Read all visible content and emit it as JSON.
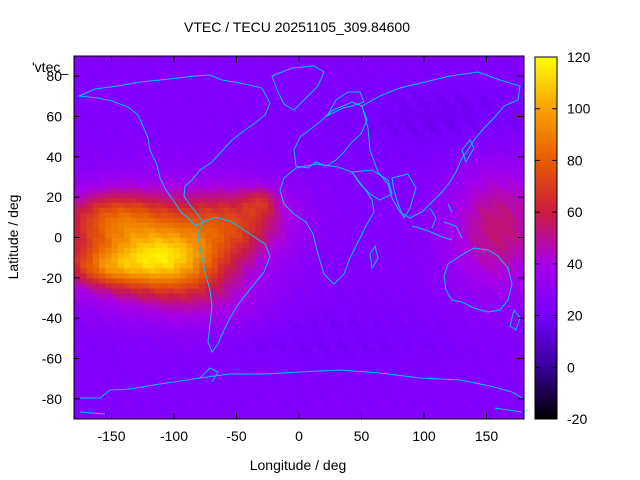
{
  "chart_data": {
    "type": "heatmap",
    "title": "VTEC / TECU 20251105_309.84600",
    "xlabel": "Longitude / deg",
    "ylabel": "Latitude / deg",
    "xlim": [
      -180,
      180
    ],
    "ylim": [
      -90,
      90
    ],
    "x_ticks": [
      -150,
      -100,
      -50,
      0,
      50,
      100,
      150
    ],
    "y_ticks": [
      -80,
      -60,
      -40,
      -20,
      0,
      20,
      40,
      60,
      80
    ],
    "x_tick_labels": [
      "-150",
      "-100",
      "-50",
      "0",
      "50",
      "100",
      "150"
    ],
    "y_tick_labels": [
      "-80",
      "-60",
      "-40",
      "-20",
      "0",
      "20",
      "40",
      "60",
      "80"
    ],
    "colorbar": {
      "range": [
        -20,
        120
      ],
      "ticks": [
        -20,
        0,
        20,
        40,
        60,
        80,
        100,
        120
      ],
      "tick_labels": [
        "-20",
        "0",
        "20",
        "40",
        "60",
        "80",
        "100",
        "120"
      ],
      "palette": "gnuplot pm3d (black-purple-red-orange-yellow)"
    },
    "legend_label": "'vtec_",
    "background_value": 24,
    "features": [
      {
        "lon": -125,
        "lat": -3,
        "sigma_lon": 48,
        "sigma_lat": 17,
        "amp": 58
      },
      {
        "lon": -105,
        "lat": -12,
        "sigma_lon": 28,
        "sigma_lat": 10,
        "amp": 38
      },
      {
        "lon": -155,
        "lat": -15,
        "sigma_lon": 20,
        "sigma_lat": 6,
        "amp": 25
      },
      {
        "lon": -150,
        "lat": 12,
        "sigma_lon": 25,
        "sigma_lat": 8,
        "amp": 22
      },
      {
        "lon": -50,
        "lat": 8,
        "sigma_lon": 30,
        "sigma_lat": 12,
        "amp": 34
      },
      {
        "lon": -30,
        "lat": 18,
        "sigma_lon": 10,
        "sigma_lat": 5,
        "amp": 20
      },
      {
        "lon": -75,
        "lat": -30,
        "sigma_lon": 35,
        "sigma_lat": 12,
        "amp": 15
      },
      {
        "lon": 160,
        "lat": 5,
        "sigma_lon": 28,
        "sigma_lat": 22,
        "amp": 30
      },
      {
        "lon": 120,
        "lat": 58,
        "sigma_lon": 70,
        "sigma_lat": 15,
        "amp": -6
      },
      {
        "lon": 20,
        "lat": -50,
        "sigma_lon": 80,
        "sigma_lat": 12,
        "amp": -4
      }
    ]
  }
}
